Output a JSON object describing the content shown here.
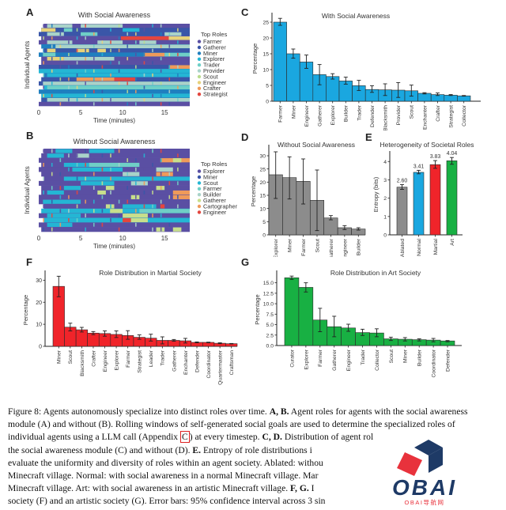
{
  "figure": {
    "panel_labels": [
      "A",
      "B",
      "C",
      "D",
      "E",
      "F",
      "G"
    ]
  },
  "caption": {
    "figure_label": "Figure 8:",
    "lines": [
      {
        "parts": [
          {
            "t": "Figure 8: Agents autonomously specialize into distinct roles over time. "
          },
          {
            "t": "A, B.",
            "b": true
          },
          {
            "t": " Agent roles for agents with the social awareness"
          }
        ]
      },
      {
        "parts": [
          {
            "t": "module (A) and without (B). Rolling windows of self-generated social goals are used to determine the specialized roles of"
          }
        ]
      },
      {
        "parts": [
          {
            "t": "individual agents using a LLM call (Appendix "
          },
          {
            "t": "C",
            "ref": true
          },
          {
            "t": ") at every timestep. "
          },
          {
            "t": "C, D.",
            "b": true
          },
          {
            "t": " Distribution of agent roles in agent societies with"
          }
        ]
      },
      {
        "parts": [
          {
            "t": "the social awareness module (C) and without (D). "
          },
          {
            "t": "E.",
            "b": true
          },
          {
            "t": " Entropy of role distributions i"
          }
        ]
      },
      {
        "parts": [
          {
            "t": "evaluate the uniformity and diversity of roles within an agent society. Ablated: withou"
          }
        ]
      },
      {
        "parts": [
          {
            "t": "Minecraft village. Normal: with social awareness in a normal Minecraft village. Mar"
          }
        ]
      },
      {
        "parts": [
          {
            "t": "Minecraft village.  Art: with social awareness in an artistic Minecraft village.  "
          },
          {
            "t": "F, G.",
            "b": true
          },
          {
            "t": " I"
          }
        ]
      },
      {
        "parts": [
          {
            "t": "society (F) and an artistic society (G). Error bars: 95% confidence interval across 3 sin"
          }
        ]
      }
    ]
  },
  "watermark": {
    "brand": "OBAI",
    "subtitle": "OBAI导航网",
    "colors": {
      "dark": "#1e3a66",
      "red": "#e8323c"
    }
  },
  "chart_data": [
    {
      "id": "A",
      "type": "heatmap",
      "title": "With Social Awareness",
      "xlabel": "Time (minutes)",
      "ylabel": "Individual Agents",
      "xticks": [
        0,
        5,
        10,
        15
      ],
      "xlim": [
        0,
        18
      ],
      "legend_title": "Top Roles",
      "legend_position": "right",
      "legend": [
        {
          "name": "Farmer",
          "color": "#5a4fa3"
        },
        {
          "name": "Gatherer",
          "color": "#3a56a8"
        },
        {
          "name": "Miner",
          "color": "#1f7fbf"
        },
        {
          "name": "Explorer",
          "color": "#24b6d4"
        },
        {
          "name": "Trader",
          "color": "#6fcfc6"
        },
        {
          "name": "Provider",
          "color": "#a9d3c9"
        },
        {
          "name": "Scout",
          "color": "#b9dc8e"
        },
        {
          "name": "Engineer",
          "color": "#e7d27a"
        },
        {
          "name": "Crafter",
          "color": "#ef9a5a"
        },
        {
          "name": "Strategist",
          "color": "#e4463e"
        }
      ],
      "rows": [
        {
          "base": "Farmer",
          "segments": [
            [
              1,
              4,
              "Provider"
            ],
            [
              5,
              10,
              "Provider"
            ]
          ]
        },
        {
          "base": "Gatherer",
          "segments": [
            [
              0.3,
              2,
              "Engineer"
            ],
            [
              3,
              4,
              "Trader"
            ],
            [
              10,
              12,
              "Explorer"
            ]
          ]
        },
        {
          "base": "Gatherer",
          "segments": [
            [
              1,
              3,
              "Provider"
            ],
            [
              5,
              7,
              "Trader"
            ],
            [
              15,
              17,
              "Provider"
            ]
          ]
        },
        {
          "base": "Farmer",
          "segments": [
            [
              9.8,
              15.5,
              "Strategist"
            ],
            [
              15.5,
              18,
              "Engineer"
            ]
          ]
        },
        {
          "base": "Farmer",
          "segments": [
            [
              1,
              4,
              "Provider"
            ],
            [
              7,
              10,
              "Provider"
            ],
            [
              12,
              14,
              "Provider"
            ]
          ]
        },
        {
          "base": "Miner",
          "segments": [
            [
              2,
              18,
              "Provider"
            ]
          ]
        },
        {
          "base": "Gatherer",
          "segments": [
            [
              1,
              2,
              "Engineer"
            ],
            [
              4.5,
              6,
              "Engineer"
            ],
            [
              7,
              8,
              "Engineer"
            ]
          ]
        },
        {
          "base": "Miner",
          "segments": [
            [
              0.5,
              2,
              "Trader"
            ],
            [
              12.5,
              15,
              "Crafter"
            ],
            [
              15,
              18,
              "Trader"
            ]
          ]
        },
        {
          "base": "Farmer",
          "segments": [
            [
              1,
              3,
              "Engineer"
            ],
            [
              3,
              9,
              "Provider"
            ]
          ]
        },
        {
          "base": "Farmer",
          "segments": []
        },
        {
          "base": "Gatherer",
          "segments": [
            [
              15.5,
              18,
              "Crafter"
            ]
          ]
        },
        {
          "base": "Explorer",
          "segments": [
            [
              3,
              10,
              "Explorer"
            ]
          ]
        },
        {
          "base": "Miner",
          "segments": [
            [
              1,
              18,
              "Explorer"
            ]
          ]
        },
        {
          "base": "Gatherer",
          "segments": [
            [
              4.5,
              11.5,
              "Crafter"
            ],
            [
              9,
              11.5,
              "Strategist"
            ]
          ]
        },
        {
          "base": "Gatherer",
          "segments": [
            [
              0.5,
              18,
              "Provider"
            ]
          ]
        },
        {
          "base": "Explorer",
          "segments": [
            [
              1,
              18,
              "Trader"
            ]
          ]
        },
        {
          "base": "Miner",
          "segments": [
            [
              1,
              18,
              "Miner"
            ]
          ]
        },
        {
          "base": "Explorer",
          "segments": [
            [
              1,
              18,
              "Explorer"
            ]
          ]
        },
        {
          "base": "Gatherer",
          "segments": [
            [
              1,
              18,
              "Provider"
            ]
          ]
        },
        {
          "base": "Farmer",
          "segments": []
        }
      ]
    },
    {
      "id": "B",
      "type": "heatmap",
      "title": "Without Social Awareness",
      "xlabel": "Time (minutes)",
      "ylabel": "Individual Agents",
      "xticks": [
        0,
        5,
        10,
        15
      ],
      "xlim": [
        0,
        18
      ],
      "legend_title": "Top Roles",
      "legend_position": "right",
      "legend": [
        {
          "name": "Explorer",
          "color": "#5a4fa3"
        },
        {
          "name": "Miner",
          "color": "#3a56a8"
        },
        {
          "name": "Scout",
          "color": "#24b6d4"
        },
        {
          "name": "Farmer",
          "color": "#6fcfc6"
        },
        {
          "name": "Builder",
          "color": "#a9d3c9"
        },
        {
          "name": "Gatherer",
          "color": "#c8df8c"
        },
        {
          "name": "Cartographer",
          "color": "#ef9a5a"
        },
        {
          "name": "Engineer",
          "color": "#e4463e"
        }
      ],
      "rows": [
        {
          "base": "Explorer",
          "segments": [
            [
              2,
              4,
              "Scout"
            ],
            [
              6,
              9,
              "Scout"
            ]
          ]
        },
        {
          "base": "Explorer",
          "segments": [
            [
              1,
              3,
              "Scout"
            ],
            [
              4.5,
              6,
              "Builder"
            ]
          ]
        },
        {
          "base": "Explorer",
          "segments": [
            [
              14.5,
              18,
              "Cartographer"
            ],
            [
              16,
              17,
              "Gatherer"
            ]
          ]
        },
        {
          "base": "Explorer",
          "segments": [
            [
              3,
              6,
              "Scout"
            ],
            [
              6,
              12,
              "Farmer"
            ]
          ]
        },
        {
          "base": "Explorer",
          "segments": [
            [
              4,
              10,
              "Scout"
            ],
            [
              14,
              16,
              "Builder"
            ]
          ]
        },
        {
          "base": "Explorer",
          "segments": [
            [
              10,
              12,
              "Builder"
            ],
            [
              14,
              16,
              "Cartographer"
            ]
          ]
        },
        {
          "base": "Explorer",
          "segments": [
            [
              3,
              18,
              "Scout"
            ]
          ]
        },
        {
          "base": "Explorer",
          "segments": [
            [
              5,
              9,
              "Scout"
            ],
            [
              11,
              13,
              "Builder"
            ]
          ]
        },
        {
          "base": "Explorer",
          "segments": [
            [
              3,
              5,
              "Scout"
            ],
            [
              8,
              9,
              "Gatherer"
            ],
            [
              14,
              15,
              "Gatherer"
            ]
          ]
        },
        {
          "base": "Explorer",
          "segments": [
            [
              1,
              3,
              "Scout"
            ],
            [
              7,
              8,
              "Gatherer"
            ],
            [
              16,
              18,
              "Cartographer"
            ]
          ]
        },
        {
          "base": "Explorer",
          "segments": [
            [
              11,
              12,
              "Gatherer"
            ],
            [
              16,
              18,
              "Cartographer"
            ]
          ]
        },
        {
          "base": "Explorer",
          "segments": [
            [
              0.5,
              5,
              "Scout"
            ]
          ]
        },
        {
          "base": "Explorer",
          "segments": [
            [
              8,
              9,
              "Gatherer"
            ],
            [
              10,
              14,
              "Scout"
            ],
            [
              14.5,
              15,
              "Engineer"
            ]
          ]
        },
        {
          "base": "Scout",
          "segments": [
            [
              8.5,
              10,
              "Gatherer"
            ],
            [
              12,
              18,
              "Farmer"
            ]
          ]
        },
        {
          "base": "Explorer",
          "segments": [
            [
              1,
              5,
              "Scout"
            ],
            [
              10,
              13,
              "Gatherer"
            ]
          ]
        },
        {
          "base": "Scout",
          "segments": [
            [
              10,
              11,
              "Engineer"
            ],
            [
              11,
              13,
              "Gatherer"
            ]
          ]
        },
        {
          "base": "Explorer",
          "segments": [
            [
              1,
              4,
              "Scout"
            ]
          ]
        },
        {
          "base": "Explorer",
          "segments": [
            [
              14,
              15,
              "Gatherer"
            ],
            [
              16,
              17,
              "Gatherer"
            ]
          ]
        }
      ]
    },
    {
      "id": "C",
      "type": "bar",
      "title": "With Social Awareness",
      "xlabel": "",
      "ylabel": "Percentage",
      "ylim": [
        0,
        27
      ],
      "yticks": [
        0,
        5,
        10,
        15,
        20,
        25
      ],
      "color": "#1aa7e0",
      "categories": [
        "Farmer",
        "Miner",
        "Engineer",
        "Gatherer",
        "Explorer",
        "Builder",
        "Trader",
        "Defender",
        "Blacksmith",
        "Provider",
        "Scout",
        "Enchanter",
        "Crafter",
        "Strategist",
        "Collector"
      ],
      "values": [
        25.0,
        15.0,
        12.4,
        8.4,
        7.8,
        6.4,
        4.9,
        3.7,
        3.6,
        3.5,
        3.3,
        2.5,
        2.1,
        1.9,
        1.7
      ],
      "err_low": [
        24.0,
        13.6,
        10.4,
        5.2,
        7.0,
        5.4,
        3.4,
        2.8,
        1.8,
        1.2,
        1.6,
        2.3,
        1.8,
        1.8,
        1.6
      ],
      "err_high": [
        26.2,
        16.5,
        14.6,
        11.6,
        8.7,
        7.6,
        6.6,
        4.9,
        5.5,
        5.9,
        5.1,
        2.7,
        2.6,
        2.1,
        1.8
      ]
    },
    {
      "id": "D",
      "type": "bar",
      "title": "Without Social Awareness",
      "xlabel": "",
      "ylabel": "Percentage",
      "ylim": [
        0,
        33
      ],
      "yticks": [
        0,
        5,
        10,
        15,
        20,
        25,
        30
      ],
      "color": "#8c8c8c",
      "categories": [
        "Explorer",
        "Miner",
        "Farmer",
        "Scout",
        "Gatherer",
        "Engineer",
        "Builder"
      ],
      "values": [
        22.8,
        21.7,
        20.3,
        13.1,
        6.4,
        2.7,
        2.2
      ],
      "err_low": [
        13.8,
        13.6,
        11.7,
        1.6,
        5.7,
        2.0,
        1.8
      ],
      "err_high": [
        31.5,
        29.6,
        28.8,
        24.6,
        7.3,
        3.5,
        2.7
      ]
    },
    {
      "id": "E",
      "type": "bar",
      "title": "Heterogeneity of Societal Roles",
      "xlabel": "",
      "ylabel": "Entropy (bits)",
      "ylim": [
        0,
        4.4
      ],
      "yticks": [
        0,
        1,
        2,
        3,
        4
      ],
      "categories": [
        "Ablated",
        "Normal",
        "Martial",
        "Art"
      ],
      "colors": [
        "#8c8c8c",
        "#1aa7e0",
        "#f0242a",
        "#18b043"
      ],
      "values": [
        2.6,
        3.41,
        3.83,
        4.04
      ],
      "data_labels": [
        "2.60",
        "3.41",
        "3.83",
        "4.04"
      ],
      "err_low": [
        2.48,
        3.33,
        3.63,
        3.85
      ],
      "err_high": [
        2.74,
        3.52,
        4.05,
        4.22
      ]
    },
    {
      "id": "F",
      "type": "bar",
      "title": "Role Distribution in Martial Society",
      "xlabel": "",
      "ylabel": "Percentage",
      "ylim": [
        0,
        33
      ],
      "yticks": [
        0,
        10,
        20,
        30
      ],
      "color": "#f0242a",
      "categories": [
        "Miner",
        "Scout",
        "Blacksmith",
        "Crafter",
        "Engineer",
        "Explorer",
        "Farmer",
        "Strategist",
        "Leader",
        "Trader",
        "Gatherer",
        "Enchanter",
        "Defender",
        "Coordinator",
        "Quartermaster",
        "Craftsman"
      ],
      "values": [
        27.2,
        8.7,
        7.5,
        6.0,
        5.8,
        5.4,
        4.9,
        4.1,
        3.7,
        2.7,
        2.7,
        2.5,
        1.8,
        1.8,
        1.4,
        1.2
      ],
      "err_low": [
        22.5,
        7.0,
        6.5,
        5.3,
        4.6,
        4.0,
        3.2,
        3.2,
        2.4,
        1.1,
        2.3,
        1.5,
        1.6,
        1.6,
        1.2,
        1.1
      ],
      "err_high": [
        31.8,
        10.5,
        8.6,
        6.7,
        7.0,
        7.0,
        7.1,
        5.2,
        5.5,
        4.3,
        3.1,
        3.6,
        2.0,
        1.9,
        1.6,
        1.3
      ]
    },
    {
      "id": "G",
      "type": "bar",
      "title": "Role Distribution in Art Society",
      "xlabel": "",
      "ylabel": "Percentage",
      "ylim": [
        0,
        17.2
      ],
      "yticks": [
        0.0,
        2.5,
        5.0,
        7.5,
        10.0,
        12.5,
        15.0
      ],
      "ytick_labels": [
        "0.0",
        "2.5",
        "5.0",
        "7.5",
        "10.0",
        "12.5",
        "15.0"
      ],
      "color": "#18b043",
      "categories": [
        "Curator",
        "Explorer",
        "Farmer",
        "Gatherer",
        "Engineer",
        "Trader",
        "Collector",
        "Scout",
        "Miner",
        "Builder",
        "Coordinator",
        "Defender"
      ],
      "values": [
        16.2,
        13.9,
        6.1,
        4.5,
        4.2,
        3.1,
        3.0,
        1.6,
        1.5,
        1.4,
        1.3,
        1.1
      ],
      "err_low": [
        15.8,
        12.8,
        3.3,
        2.1,
        3.4,
        2.4,
        2.1,
        1.2,
        1.1,
        1.1,
        0.9,
        0.9
      ],
      "err_high": [
        16.6,
        15.0,
        8.9,
        7.0,
        5.1,
        3.9,
        4.0,
        2.0,
        1.9,
        1.6,
        1.7,
        1.2
      ]
    }
  ]
}
